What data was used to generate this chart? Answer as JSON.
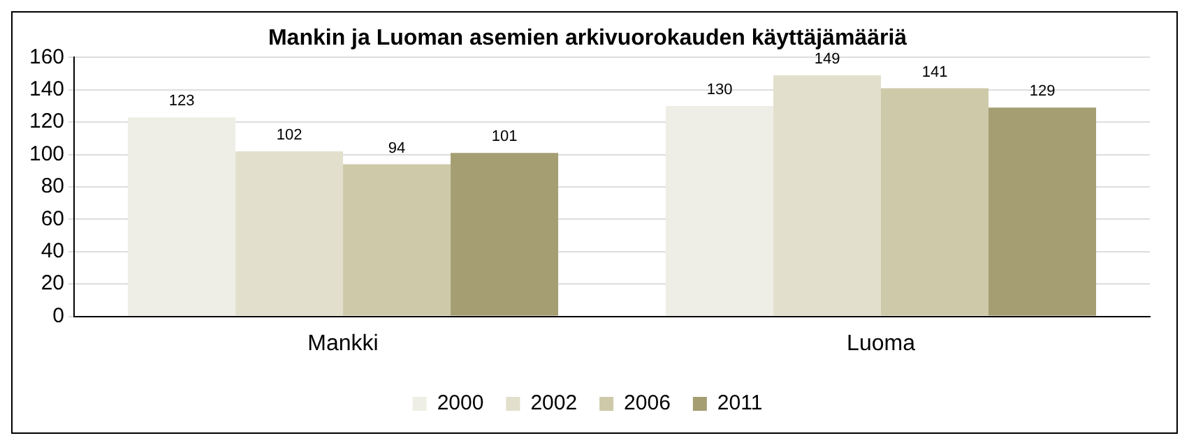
{
  "chart_data": {
    "type": "bar",
    "title": "Mankin ja Luoman asemien arkivuorokauden käyttäjämääriä",
    "categories": [
      "Mankki",
      "Luoma"
    ],
    "series": [
      {
        "name": "2000",
        "color": "#efeee6",
        "values": [
          123,
          130
        ]
      },
      {
        "name": "2002",
        "color": "#e2dfcc",
        "values": [
          102,
          149
        ]
      },
      {
        "name": "2006",
        "color": "#cec9a9",
        "values": [
          94,
          141
        ]
      },
      {
        "name": "2011",
        "color": "#a59e73",
        "values": [
          101,
          129
        ]
      }
    ],
    "ylim": [
      0,
      160
    ],
    "yticks": [
      0,
      20,
      40,
      60,
      80,
      100,
      120,
      140,
      160
    ],
    "grid": "y",
    "legend": "bottom",
    "data_labels": true
  }
}
